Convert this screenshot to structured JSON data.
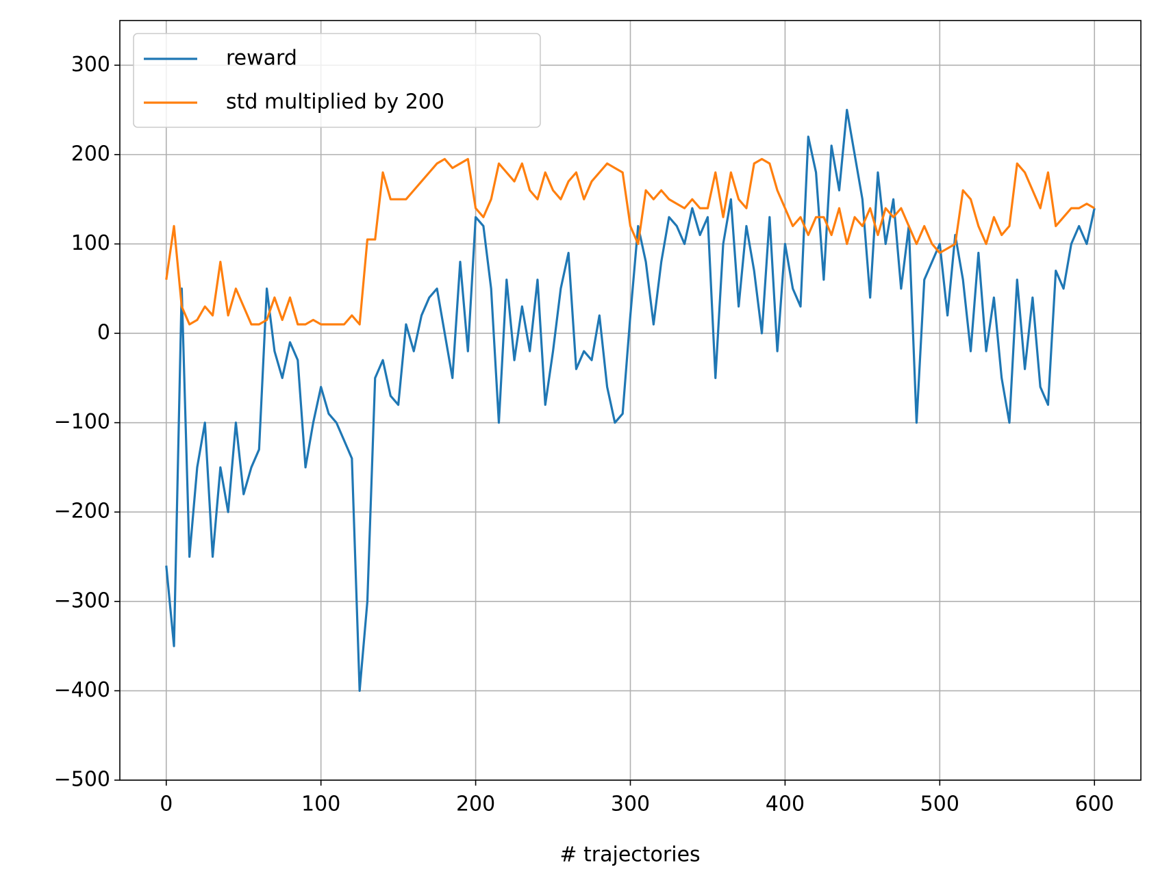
{
  "chart_data": {
    "type": "line",
    "x_label": "# trajectories",
    "x": [
      0,
      5,
      10,
      15,
      20,
      25,
      30,
      35,
      40,
      45,
      50,
      55,
      60,
      65,
      70,
      75,
      80,
      85,
      90,
      95,
      100,
      105,
      110,
      115,
      120,
      125,
      130,
      135,
      140,
      145,
      150,
      155,
      160,
      165,
      170,
      175,
      180,
      185,
      190,
      195,
      200,
      205,
      210,
      215,
      220,
      225,
      230,
      235,
      240,
      245,
      250,
      255,
      260,
      265,
      270,
      275,
      280,
      285,
      290,
      295,
      300,
      305,
      310,
      315,
      320,
      325,
      330,
      335,
      340,
      345,
      350,
      355,
      360,
      365,
      370,
      375,
      380,
      385,
      390,
      395,
      400,
      405,
      410,
      415,
      420,
      425,
      430,
      435,
      440,
      445,
      450,
      455,
      460,
      465,
      470,
      475,
      480,
      485,
      490,
      495,
      500,
      505,
      510,
      515,
      520,
      525,
      530,
      535,
      540,
      545,
      550,
      555,
      560,
      565,
      570,
      575,
      580,
      585,
      590,
      595,
      600
    ],
    "series": [
      {
        "name": "reward",
        "color": "#1f77b4",
        "values": [
          -260,
          -350,
          50,
          -250,
          -150,
          -100,
          -250,
          -150,
          -200,
          -100,
          -180,
          -150,
          -130,
          50,
          -20,
          -50,
          -10,
          -30,
          -150,
          -100,
          -60,
          -90,
          -100,
          -120,
          -140,
          -400,
          -300,
          -50,
          -30,
          -70,
          -80,
          10,
          -20,
          20,
          40,
          50,
          0,
          -50,
          80,
          -20,
          130,
          120,
          50,
          -100,
          60,
          -30,
          30,
          -20,
          60,
          -80,
          -20,
          50,
          90,
          -40,
          -20,
          -30,
          20,
          -60,
          -100,
          -90,
          20,
          120,
          80,
          10,
          80,
          130,
          120,
          100,
          140,
          110,
          130,
          -50,
          100,
          150,
          30,
          120,
          70,
          0,
          130,
          -20,
          100,
          50,
          30,
          220,
          180,
          60,
          210,
          160,
          250,
          200,
          150,
          40,
          180,
          100,
          150,
          50,
          120,
          -100,
          60,
          80,
          100,
          20,
          110,
          60,
          -20,
          90,
          -20,
          40,
          -50,
          -100,
          60,
          -40,
          40,
          -60,
          -80,
          70,
          50,
          100,
          120,
          100,
          140
        ]
      },
      {
        "name": "std multiplied by 200",
        "color": "#ff7f0e",
        "values": [
          60,
          120,
          30,
          10,
          15,
          30,
          20,
          80,
          20,
          50,
          30,
          10,
          10,
          15,
          40,
          15,
          40,
          10,
          10,
          15,
          10,
          10,
          10,
          10,
          20,
          10,
          105,
          105,
          180,
          150,
          150,
          150,
          160,
          170,
          180,
          190,
          195,
          185,
          190,
          195,
          140,
          130,
          150,
          190,
          180,
          170,
          190,
          160,
          150,
          180,
          160,
          150,
          170,
          180,
          150,
          170,
          180,
          190,
          185,
          180,
          120,
          100,
          160,
          150,
          160,
          150,
          145,
          140,
          150,
          140,
          140,
          180,
          130,
          180,
          150,
          140,
          190,
          195,
          190,
          160,
          140,
          120,
          130,
          110,
          130,
          130,
          110,
          140,
          100,
          130,
          120,
          140,
          110,
          140,
          130,
          140,
          120,
          100,
          120,
          100,
          90,
          95,
          100,
          160,
          150,
          120,
          100,
          130,
          110,
          120,
          190,
          180,
          160,
          140,
          180,
          120,
          130,
          140,
          140,
          145,
          140
        ]
      }
    ],
    "xlim": [
      -30,
      630
    ],
    "ylim": [
      -500,
      350
    ],
    "xticks": [
      0,
      100,
      200,
      300,
      400,
      500,
      600
    ],
    "yticks": [
      {
        "value": -500,
        "label": "−500"
      },
      {
        "value": -400,
        "label": "−400"
      },
      {
        "value": -300,
        "label": "−300"
      },
      {
        "value": -200,
        "label": "−200"
      },
      {
        "value": -100,
        "label": "−100"
      },
      0,
      100,
      200,
      300
    ],
    "grid": true,
    "legend": "upper left"
  }
}
